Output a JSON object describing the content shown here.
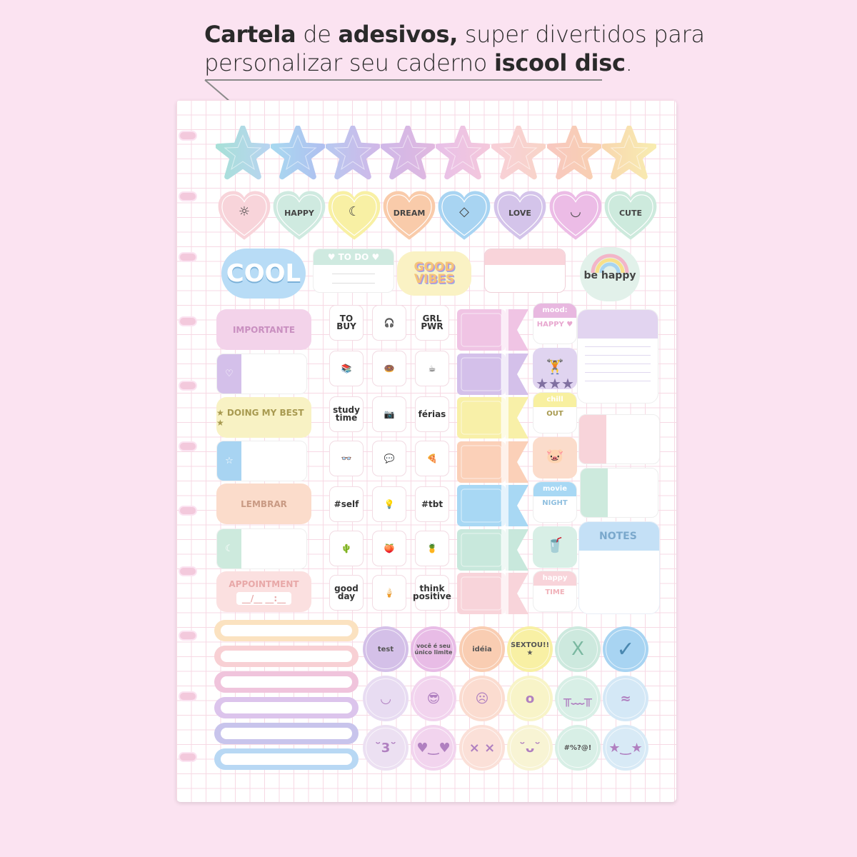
{
  "headline": {
    "line1": [
      {
        "t": "Cartela",
        "b": true
      },
      {
        "t": " de ",
        "b": false
      },
      {
        "t": "adesivos,",
        "b": true
      },
      {
        "t": " super divertidos para",
        "b": false
      }
    ],
    "line2": [
      {
        "t": "personalizar seu caderno ",
        "b": false
      },
      {
        "t": "iscool disc",
        "b": true
      },
      {
        "t": ".",
        "b": false
      }
    ]
  },
  "stars": {
    "colors": [
      [
        "#a8e0d8",
        "#b8d4f0"
      ],
      [
        "#a8d8f0",
        "#b0c0f0"
      ],
      [
        "#b8c8f0",
        "#d0b8e8"
      ],
      [
        "#d0b8e8",
        "#e0b8e0"
      ],
      [
        "#e8c0e8",
        "#f4c8dc"
      ],
      [
        "#f8d0d8",
        "#f8d4c8"
      ],
      [
        "#f8c8c0",
        "#f8d0b0"
      ],
      [
        "#f8d8b0",
        "#f8ecb0"
      ]
    ]
  },
  "hearts": [
    {
      "label": "",
      "icon": "sun-icon",
      "glyph": "☼",
      "color": "#f8d4da"
    },
    {
      "label": "HAPPY",
      "icon": "",
      "glyph": "",
      "color": "#cfeae0"
    },
    {
      "label": "",
      "icon": "moon-icon",
      "glyph": "☾",
      "color": "#f8f0a4"
    },
    {
      "label": "DREAM",
      "icon": "",
      "glyph": "",
      "color": "#f9cbaa"
    },
    {
      "label": "",
      "icon": "diamond-icon",
      "glyph": "◇",
      "color": "#a8d4f2"
    },
    {
      "label": "LOVE",
      "icon": "",
      "glyph": "",
      "color": "#d4c4ea"
    },
    {
      "label": "",
      "icon": "lips-icon",
      "glyph": "◡",
      "color": "#ecbce6"
    },
    {
      "label": "CUTE",
      "icon": "",
      "glyph": "",
      "color": "#cdeadd"
    }
  ],
  "row3": {
    "cool": "COOL",
    "todo": "♥ TO DO ♥",
    "good_vibes": "GOOD VIBES",
    "be_happy": "be happy"
  },
  "left_labels": [
    {
      "text": "IMPORTANTE",
      "color": "#f3d3ea",
      "fg": "#c98fc0"
    },
    {
      "text": "♡",
      "color": "#d4c0ea",
      "fg": "#fff",
      "tab": true
    },
    {
      "text": "★ DOING MY BEST ★",
      "color": "#f8f2c4",
      "fg": "#a89a50"
    },
    {
      "text": "☆",
      "color": "#a8d4f2",
      "fg": "#fff",
      "tab": true
    },
    {
      "text": "LEMBRAR",
      "color": "#fbdccb",
      "fg": "#c99a84"
    },
    {
      "text": "☾",
      "color": "#cdeadd",
      "fg": "#fff",
      "tab": true
    },
    {
      "text": "APPOINTMENT",
      "color": "#fbe0e0",
      "fg": "#e8a8a8",
      "sub": "__/__  __:__"
    }
  ],
  "cells": [
    [
      "TO BUY",
      "🎧",
      "GRL PWR"
    ],
    [
      "📚",
      "🍩",
      "☕"
    ],
    [
      "study time",
      "📷",
      "férias"
    ],
    [
      "👓",
      "💬",
      "🍕"
    ],
    [
      "#self",
      "💡",
      "#tbt"
    ],
    [
      "🌵",
      "🍑",
      "🍍"
    ],
    [
      "good day",
      "🍦",
      "think positive"
    ]
  ],
  "flags": {
    "colors": [
      "#f0c4e4",
      "#d4c0ea",
      "#f8f0a8",
      "#fbd0b8",
      "#a8d8f4",
      "#c8e8dc",
      "#f8d4da"
    ]
  },
  "minis": [
    {
      "top": "mood:",
      "sub": "HAPPY ♥",
      "color": "#e8b8e0",
      "fg": "#e8a8d0"
    },
    {
      "top": "",
      "sub": "🏋 ★★★",
      "color": "#e0d4f0",
      "fg": "#8070a0",
      "full": true
    },
    {
      "top": "chill",
      "sub": "OUT",
      "color": "#f8f0a0",
      "fg": "#a89a50"
    },
    {
      "top": "",
      "sub": "🐷",
      "color": "#fbdccb",
      "fg": "#c98f80",
      "full": true
    },
    {
      "top": "movie",
      "sub": "NIGHT",
      "color": "#a8d8f4",
      "fg": "#90c0e0"
    },
    {
      "top": "",
      "sub": "🥤",
      "color": "#d8efe6",
      "fg": "#80a0c0",
      "full": true
    },
    {
      "top": "happy",
      "sub": "TIME",
      "color": "#f8d4da",
      "fg": "#f0b0b8"
    }
  ],
  "right": {
    "notes": "NOTES"
  },
  "bars": {
    "colors": [
      "#fbe2c0",
      "#f8d0d4",
      "#f0c4dc",
      "#dcc4ec",
      "#c8c4ec",
      "#b8d8f4"
    ]
  },
  "circles": [
    {
      "text": "test",
      "color": "#d4c0e8"
    },
    {
      "text": "você é seu único limite",
      "color": "#e8bce6"
    },
    {
      "text": "idéia",
      "color": "#f9cdb2"
    },
    {
      "text": "SEXTOU!! ★",
      "color": "#f8f0a4"
    },
    {
      "text": "X",
      "color": "#cde9de"
    },
    {
      "text": "✓",
      "color": "#a8d4f2"
    },
    {
      "text": "◡",
      "color": "#e8dcf2"
    },
    {
      "text": "😎",
      "color": "#f2d4ee"
    },
    {
      "text": "☹",
      "color": "#fbdcd0"
    },
    {
      "text": "o",
      "color": "#f8f4c8"
    },
    {
      "text": "╥﹏╥",
      "color": "#d8efe6"
    },
    {
      "text": "≈",
      "color": "#d4e8f6"
    },
    {
      "text": "˘3˘",
      "color": "#ece0f2"
    },
    {
      "text": "♥‿♥",
      "color": "#f2d4ee"
    },
    {
      "text": "× ×",
      "color": "#fbe0d8"
    },
    {
      "text": "˘ᴗ˘",
      "color": "#f8f4d4"
    },
    {
      "text": "#%?@!",
      "color": "#d8efe6"
    },
    {
      "text": "★‿★",
      "color": "#d8eaf6"
    }
  ]
}
